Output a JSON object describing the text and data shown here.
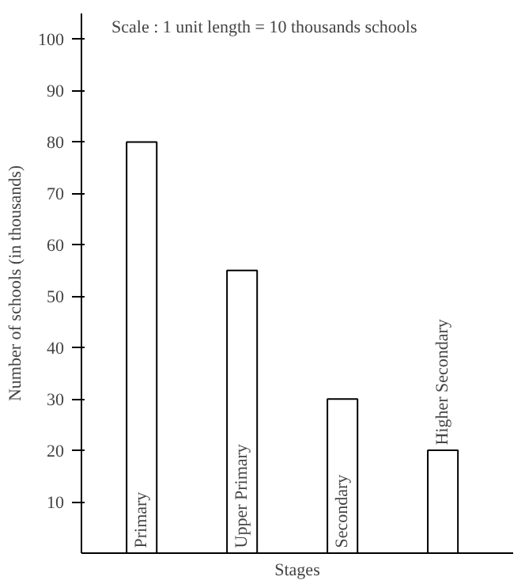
{
  "chart_data": {
    "type": "bar",
    "xlabel": "Stages",
    "ylabel": "Number of schools (in thousands)",
    "categories": [
      "Primary",
      "Upper Primary",
      "Secondary",
      "Higher Secondary"
    ],
    "values": [
      80,
      55,
      30,
      20
    ],
    "color": "#ffffff",
    "ylim": [
      0,
      105
    ],
    "yticks": [
      10,
      20,
      30,
      40,
      50,
      60,
      70,
      80,
      90,
      100
    ],
    "grid": false,
    "annotations": [
      "Scale : 1 unit length = 10 thousands schools"
    ]
  }
}
